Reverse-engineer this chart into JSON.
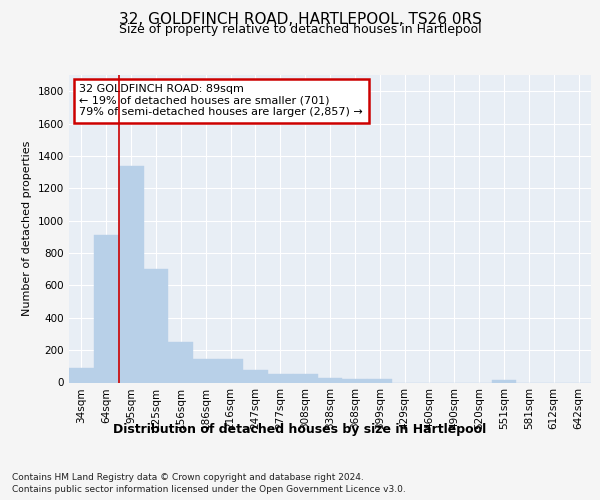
{
  "title1": "32, GOLDFINCH ROAD, HARTLEPOOL, TS26 0RS",
  "title2": "Size of property relative to detached houses in Hartlepool",
  "xlabel": "Distribution of detached houses by size in Hartlepool",
  "ylabel": "Number of detached properties",
  "categories": [
    "34sqm",
    "64sqm",
    "95sqm",
    "125sqm",
    "156sqm",
    "186sqm",
    "216sqm",
    "247sqm",
    "277sqm",
    "308sqm",
    "338sqm",
    "368sqm",
    "399sqm",
    "429sqm",
    "460sqm",
    "490sqm",
    "520sqm",
    "551sqm",
    "581sqm",
    "612sqm",
    "642sqm"
  ],
  "values": [
    90,
    910,
    1340,
    700,
    250,
    145,
    145,
    80,
    55,
    55,
    25,
    20,
    20,
    0,
    0,
    0,
    0,
    15,
    0,
    0,
    0
  ],
  "bar_color": "#b8d0e8",
  "bar_edge_color": "#b8d0e8",
  "ylim": [
    0,
    1900
  ],
  "yticks": [
    0,
    200,
    400,
    600,
    800,
    1000,
    1200,
    1400,
    1600,
    1800
  ],
  "annotation_text": "32 GOLDFINCH ROAD: 89sqm\n← 19% of detached houses are smaller (701)\n79% of semi-detached houses are larger (2,857) →",
  "red_line_x": 1.5,
  "footer1": "Contains HM Land Registry data © Crown copyright and database right 2024.",
  "footer2": "Contains public sector information licensed under the Open Government Licence v3.0.",
  "background_color": "#f5f5f5",
  "plot_bg_color": "#e8eef5",
  "grid_color": "#ffffff",
  "annotation_box_color": "#ffffff",
  "annotation_box_edge": "#cc0000",
  "red_line_color": "#cc0000",
  "title1_fontsize": 11,
  "title2_fontsize": 9,
  "ylabel_fontsize": 8,
  "xlabel_fontsize": 9,
  "tick_fontsize": 7.5,
  "footer_fontsize": 6.5,
  "ann_fontsize": 8
}
